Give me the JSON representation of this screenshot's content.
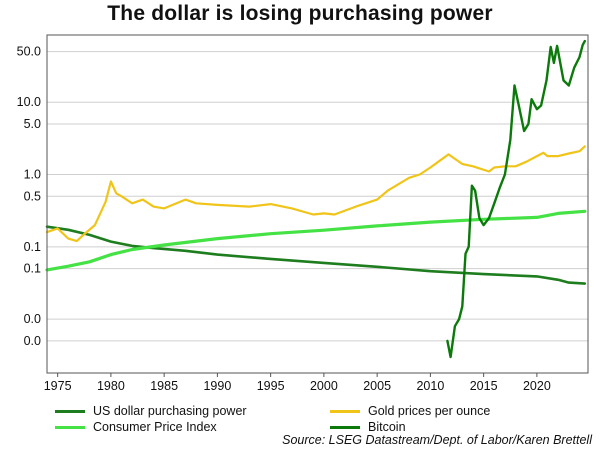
{
  "chart_data": {
    "type": "line",
    "title": "The dollar is losing purchasing power",
    "source": "Source: LSEG Datastream/Dept. of Labor/Karen Brettell",
    "y_scale": "log",
    "grid": "horizontal",
    "xlim": [
      1974,
      2024.8
    ],
    "ylim": [
      0.0018,
      85
    ],
    "x_ticks": [
      1975,
      1980,
      1985,
      1990,
      1995,
      2000,
      2005,
      2010,
      2015,
      2020
    ],
    "y_ticks": [
      {
        "label": "50.0",
        "value": 50
      },
      {
        "label": "10.0",
        "value": 10
      },
      {
        "label": "5.0",
        "value": 5
      },
      {
        "label": "1.0",
        "value": 1
      },
      {
        "label": "0.5",
        "value": 0.5
      },
      {
        "label": "0.1",
        "value": 0.1
      },
      {
        "label": "0.1",
        "value": 0.05
      },
      {
        "label": "0.0",
        "value": 0.01
      },
      {
        "label": "0.0",
        "value": 0.005
      }
    ],
    "legend": {
      "placement": "bottom",
      "columns": 2
    },
    "series": [
      {
        "name": "US dollar purchasing power",
        "color": "#1e7d1e",
        "x": [
          1974,
          1976,
          1978,
          1980,
          1982,
          1984,
          1987,
          1990,
          1995,
          2000,
          2005,
          2010,
          2015,
          2020,
          2022,
          2023,
          2024.5
        ],
        "values": [
          0.19,
          0.172,
          0.146,
          0.118,
          0.103,
          0.096,
          0.088,
          0.078,
          0.068,
          0.06,
          0.053,
          0.046,
          0.042,
          0.039,
          0.035,
          0.032,
          0.031
        ]
      },
      {
        "name": "Gold prices per ounce",
        "color": "#f0c419",
        "x": [
          1974,
          1975,
          1976,
          1976.8,
          1977.5,
          1978.5,
          1979.5,
          1980,
          1980.5,
          1981,
          1982,
          1983,
          1984,
          1985,
          1987,
          1988,
          1990,
          1993,
          1995,
          1997,
          1999,
          2000,
          2001,
          2003,
          2005,
          2006,
          2008,
          2009,
          2010,
          2011,
          2011.7,
          2013,
          2014,
          2015.5,
          2016,
          2017,
          2018,
          2019,
          2020,
          2020.6,
          2021,
          2022,
          2023,
          2024,
          2024.5
        ],
        "values": [
          0.16,
          0.18,
          0.13,
          0.12,
          0.15,
          0.2,
          0.42,
          0.8,
          0.55,
          0.5,
          0.4,
          0.45,
          0.36,
          0.34,
          0.45,
          0.4,
          0.38,
          0.36,
          0.39,
          0.34,
          0.28,
          0.29,
          0.28,
          0.36,
          0.45,
          0.6,
          0.9,
          1.0,
          1.25,
          1.6,
          1.9,
          1.4,
          1.3,
          1.1,
          1.25,
          1.3,
          1.3,
          1.5,
          1.8,
          2.0,
          1.8,
          1.8,
          1.95,
          2.1,
          2.45
        ]
      },
      {
        "name": "Consumer Price Index",
        "color": "#44e244",
        "x": [
          1974,
          1976,
          1978,
          1980,
          1982,
          1985,
          1990,
          1995,
          2000,
          2005,
          2010,
          2015,
          2020,
          2022,
          2024.5
        ],
        "values": [
          0.048,
          0.054,
          0.062,
          0.078,
          0.092,
          0.106,
          0.13,
          0.152,
          0.17,
          0.195,
          0.22,
          0.24,
          0.255,
          0.29,
          0.31
        ]
      },
      {
        "name": "Bitcoin",
        "color": "#0b7a0b",
        "x": [
          2011.6,
          2011.9,
          2012.3,
          2012.7,
          2013.0,
          2013.3,
          2013.6,
          2013.9,
          2014.2,
          2014.6,
          2015.0,
          2015.5,
          2016.0,
          2016.5,
          2017.0,
          2017.5,
          2017.9,
          2018.3,
          2018.8,
          2019.2,
          2019.5,
          2020.0,
          2020.4,
          2020.9,
          2021.3,
          2021.6,
          2021.9,
          2022.5,
          2023.0,
          2023.5,
          2024.0,
          2024.3,
          2024.5
        ],
        "values": [
          0.005,
          0.003,
          0.008,
          0.01,
          0.015,
          0.08,
          0.1,
          0.7,
          0.6,
          0.25,
          0.2,
          0.25,
          0.4,
          0.65,
          1.0,
          3.0,
          17.0,
          9.0,
          4.0,
          5.0,
          11.0,
          8.0,
          9.0,
          20.0,
          58.0,
          35.0,
          60.0,
          20.0,
          17.0,
          30.0,
          42.0,
          62.0,
          70.0
        ]
      }
    ]
  }
}
